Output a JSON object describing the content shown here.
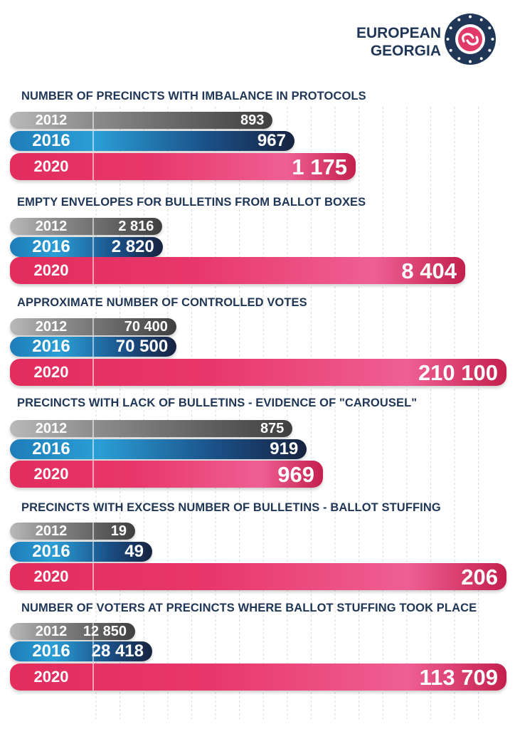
{
  "brand": {
    "line1": "EUROPEAN",
    "line2": "GEORGIA"
  },
  "colors": {
    "title": "#1f3657",
    "y2012": "#6e6e6e",
    "y2016": "#1f6fad",
    "y2020": "#e23a68"
  },
  "chart_data": [
    {
      "type": "bar",
      "title": "NUMBER OF PRECINCTS WITH IMBALANCE IN PROTOCOLS",
      "categories": [
        "2012",
        "2016",
        "2020"
      ],
      "values": [
        893,
        967,
        1175
      ],
      "labels": [
        "893",
        "967",
        "1 175"
      ]
    },
    {
      "type": "bar",
      "title": "EMPTY ENVELOPES FOR BULLETINS FROM BALLOT BOXES",
      "categories": [
        "2012",
        "2016",
        "2020"
      ],
      "values": [
        2816,
        2820,
        8404
      ],
      "labels": [
        "2 816",
        "2 820",
        "8 404"
      ]
    },
    {
      "type": "bar",
      "title": "APPROXIMATE NUMBER OF CONTROLLED VOTES",
      "categories": [
        "2012",
        "2016",
        "2020"
      ],
      "values": [
        70400,
        70500,
        210100
      ],
      "labels": [
        "70 400",
        "70 500",
        "210 100"
      ]
    },
    {
      "type": "bar",
      "title": "PRECINCTS WITH LACK OF BULLETINS - EVIDENCE OF \"CAROUSEL\"",
      "categories": [
        "2012",
        "2016",
        "2020"
      ],
      "values": [
        875,
        919,
        969
      ],
      "labels": [
        "875",
        "919",
        "969"
      ]
    },
    {
      "type": "bar",
      "title": "PRECINCTS WITH EXCESS NUMBER OF BULLETINS - BALLOT STUFFING",
      "categories": [
        "2012",
        "2016",
        "2020"
      ],
      "values": [
        19,
        49,
        206
      ],
      "labels": [
        "19",
        "49",
        "206"
      ]
    },
    {
      "type": "bar",
      "title": "NUMBER OF VOTERS AT PRECINCTS WHERE BALLOT STUFFING TOOK PLACE",
      "categories": [
        "2012",
        "2016",
        "2020"
      ],
      "values": [
        12850,
        28418,
        113709
      ],
      "labels": [
        "12 850",
        "28 418",
        "113 709"
      ]
    }
  ]
}
